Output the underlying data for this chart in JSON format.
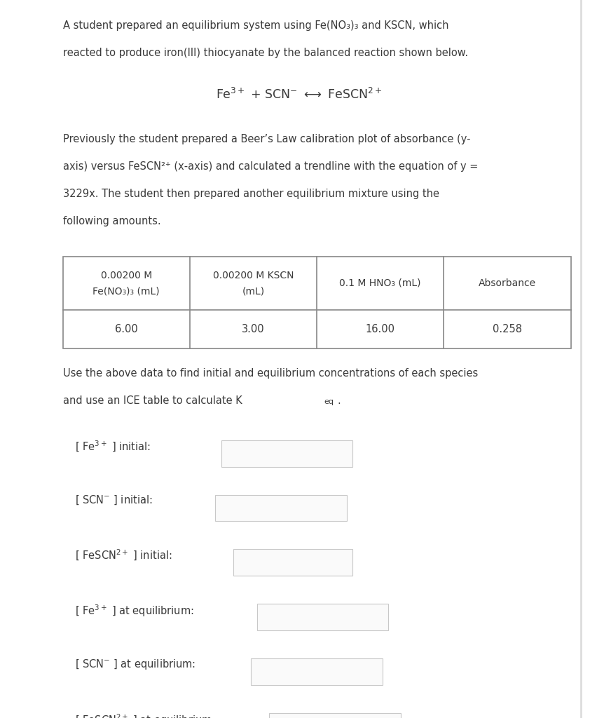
{
  "bg_color": "#ffffff",
  "text_color": "#3a3a3a",
  "input_box_border": "#c8c8c8",
  "para1_line1": "A student prepared an equilibrium system using Fe(NO₃)₃ and KSCN, which",
  "para1_line2": "reacted to produce iron(III) thiocyanate by the balanced reaction shown below.",
  "para2_line1": "Previously the student prepared a Beer’s Law calibration plot of absorbance (y-",
  "para2_line2": "axis) versus FeSCN²⁺ (x-axis) and calculated a trendline with the equation of y =",
  "para2_line3": "3229x. The student then prepared another equilibrium mixture using the",
  "para2_line4": "following amounts.",
  "table_headers": [
    "0.00200 M\nFe(NO₃)₃ (mL)",
    "0.00200 M KSCN\n(mL)",
    "0.1 M HNO₃ (mL)",
    "Absorbance"
  ],
  "table_data": [
    "6.00",
    "3.00",
    "16.00",
    "0.258"
  ],
  "para3_line1": "Use the above data to find initial and equilibrium concentrations of each species",
  "para3_line2": "and use an ICE table to calculate K",
  "para3_line2_sub": "eq",
  "para3_line2_end": ".",
  "fs_main": 10.5,
  "lm": 0.105,
  "rm": 0.955
}
